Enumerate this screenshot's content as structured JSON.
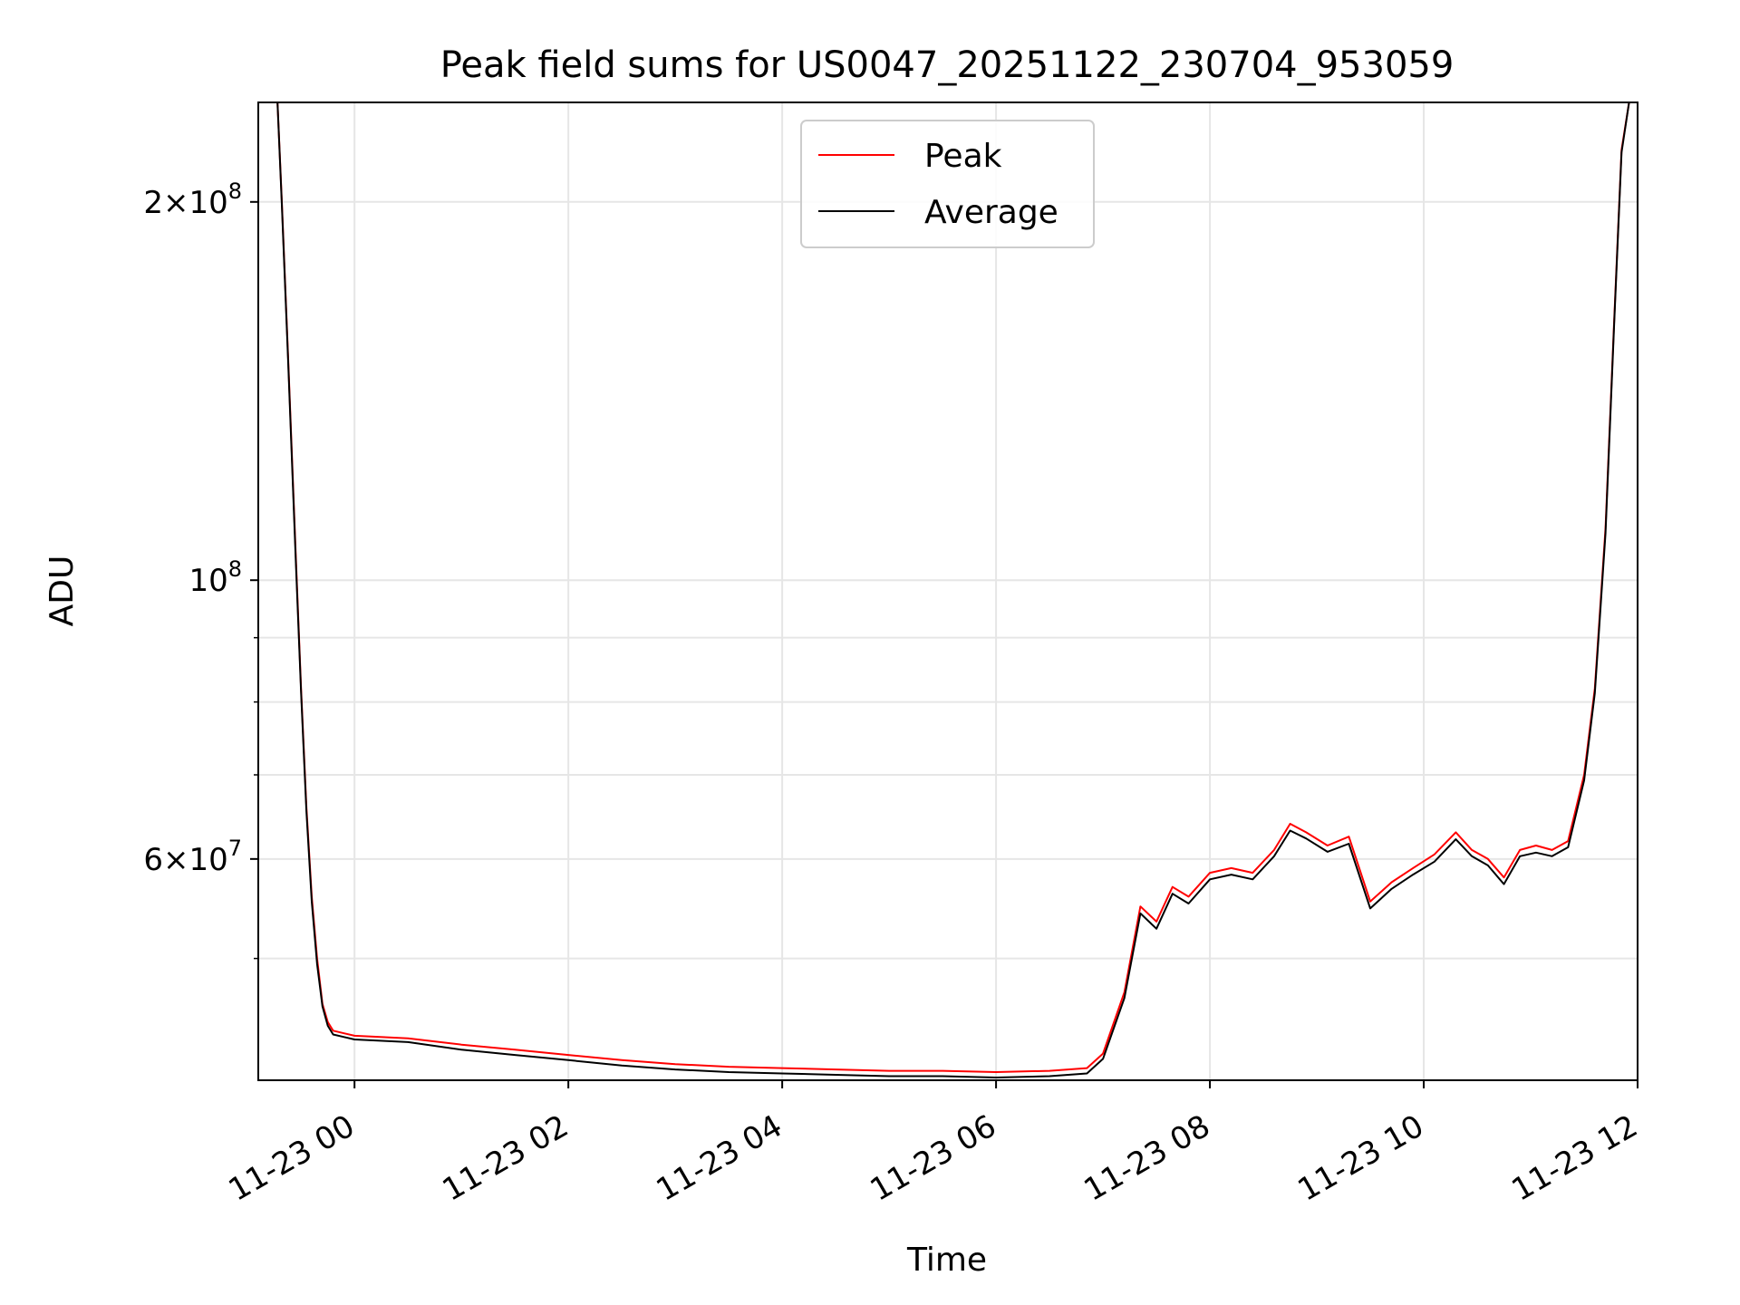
{
  "chart_data": {
    "type": "line",
    "title": "Peak field sums for US0047_20251122_230704_953059",
    "xlabel": "Time",
    "ylabel": "ADU",
    "yscale": "log",
    "grid": true,
    "legend_position": "upper-center",
    "x_unit": "hours since 11-23 00:00",
    "xlim": [
      -0.9,
      12.0
    ],
    "ylim": [
      40000000,
      240000000
    ],
    "x_ticks": [
      {
        "value": 0,
        "label": "11-23 00"
      },
      {
        "value": 2,
        "label": "11-23 02"
      },
      {
        "value": 4,
        "label": "11-23 04"
      },
      {
        "value": 6,
        "label": "11-23 06"
      },
      {
        "value": 8,
        "label": "11-23 08"
      },
      {
        "value": 10,
        "label": "11-23 10"
      },
      {
        "value": 12,
        "label": "11-23 12"
      }
    ],
    "y_major_ticks": [
      {
        "value": 200000000,
        "mantissa": "2",
        "exponent": "8"
      },
      {
        "value": 100000000,
        "mantissa": "",
        "exponent": "8"
      },
      {
        "value": 60000000,
        "mantissa": "6",
        "exponent": "7"
      }
    ],
    "y_minor_ticks": [
      90000000,
      80000000,
      70000000,
      50000000
    ],
    "series": [
      {
        "name": "Peak",
        "color": "#ff0000",
        "x": [
          -0.72,
          -0.68,
          -0.62,
          -0.55,
          -0.5,
          -0.45,
          -0.4,
          -0.35,
          -0.3,
          -0.25,
          -0.2,
          0.0,
          0.5,
          1.0,
          1.5,
          2.0,
          2.5,
          3.0,
          3.5,
          4.0,
          4.5,
          5.0,
          5.5,
          6.0,
          6.5,
          6.85,
          7.0,
          7.2,
          7.35,
          7.5,
          7.65,
          7.8,
          8.0,
          8.2,
          8.4,
          8.6,
          8.75,
          8.9,
          9.1,
          9.3,
          9.5,
          9.7,
          9.9,
          10.1,
          10.3,
          10.45,
          10.6,
          10.75,
          10.9,
          11.05,
          11.2,
          11.35,
          11.5,
          11.6,
          11.7,
          11.78,
          11.85,
          11.92
        ],
        "values": [
          240000000,
          200000000,
          150000000,
          105000000,
          82000000,
          66000000,
          56000000,
          50000000,
          46000000,
          44500000,
          43800000,
          43400000,
          43200000,
          42700000,
          42300000,
          41900000,
          41500000,
          41200000,
          41000000,
          40900000,
          40800000,
          40700000,
          40700000,
          40600000,
          40700000,
          40900000,
          42000000,
          47000000,
          55000000,
          53500000,
          57000000,
          56000000,
          58500000,
          59000000,
          58500000,
          61000000,
          64000000,
          63000000,
          61500000,
          62500000,
          55500000,
          57500000,
          59000000,
          60500000,
          63000000,
          61000000,
          60000000,
          58000000,
          61000000,
          61500000,
          61000000,
          62000000,
          70000000,
          82000000,
          110000000,
          160000000,
          220000000,
          240000000
        ]
      },
      {
        "name": "Average",
        "color": "#000000",
        "x": [
          -0.72,
          -0.68,
          -0.62,
          -0.55,
          -0.5,
          -0.45,
          -0.4,
          -0.35,
          -0.3,
          -0.25,
          -0.2,
          0.0,
          0.5,
          1.0,
          1.5,
          2.0,
          2.5,
          3.0,
          3.5,
          4.0,
          4.5,
          5.0,
          5.5,
          6.0,
          6.5,
          6.85,
          7.0,
          7.2,
          7.35,
          7.5,
          7.65,
          7.8,
          8.0,
          8.2,
          8.4,
          8.6,
          8.75,
          8.9,
          9.1,
          9.3,
          9.5,
          9.7,
          9.9,
          10.1,
          10.3,
          10.45,
          10.6,
          10.75,
          10.9,
          11.05,
          11.2,
          11.35,
          11.5,
          11.6,
          11.7,
          11.78,
          11.85,
          11.92
        ],
        "values": [
          240000000,
          199000000,
          149000000,
          104000000,
          81500000,
          65500000,
          55500000,
          49500000,
          45800000,
          44200000,
          43500000,
          43100000,
          42900000,
          42300000,
          41900000,
          41500000,
          41100000,
          40800000,
          40600000,
          40500000,
          40400000,
          40300000,
          40300000,
          40200000,
          40300000,
          40500000,
          41600000,
          46500000,
          54300000,
          52800000,
          56300000,
          55300000,
          57800000,
          58300000,
          57800000,
          60300000,
          63200000,
          62300000,
          60800000,
          61700000,
          54800000,
          56800000,
          58300000,
          59700000,
          62200000,
          60300000,
          59300000,
          57300000,
          60300000,
          60700000,
          60300000,
          61300000,
          69300000,
          81300000,
          109000000,
          159000000,
          219000000,
          240000000
        ]
      }
    ]
  }
}
